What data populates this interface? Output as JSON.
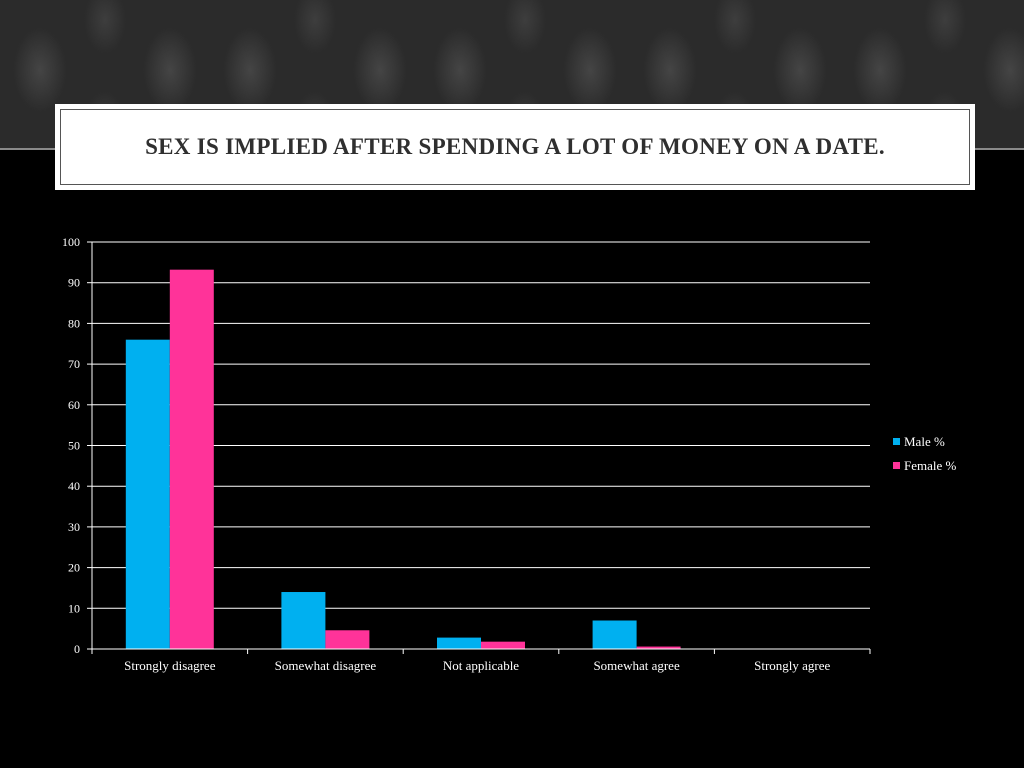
{
  "slide": {
    "title": "SEX IS IMPLIED AFTER SPENDING A LOT OF MONEY ON A DATE."
  },
  "colors": {
    "background": "#000000",
    "male": "#00b0f0",
    "female": "#ff3399",
    "gridline": "#ffffff",
    "text": "#ffffff"
  },
  "chart_data": {
    "type": "bar",
    "categories": [
      "Strongly disagree",
      "Somewhat disagree",
      "Not applicable",
      "Somewhat agree",
      "Strongly agree"
    ],
    "series": [
      {
        "name": "Male %",
        "values": [
          76,
          14,
          2.8,
          7,
          0
        ]
      },
      {
        "name": "Female %",
        "values": [
          93.2,
          4.6,
          1.8,
          0.6,
          0
        ]
      }
    ],
    "yticks": [
      0,
      10,
      20,
      30,
      40,
      50,
      60,
      70,
      80,
      90,
      100
    ],
    "ylim": [
      0,
      100
    ],
    "grid": true,
    "legend": "right"
  }
}
